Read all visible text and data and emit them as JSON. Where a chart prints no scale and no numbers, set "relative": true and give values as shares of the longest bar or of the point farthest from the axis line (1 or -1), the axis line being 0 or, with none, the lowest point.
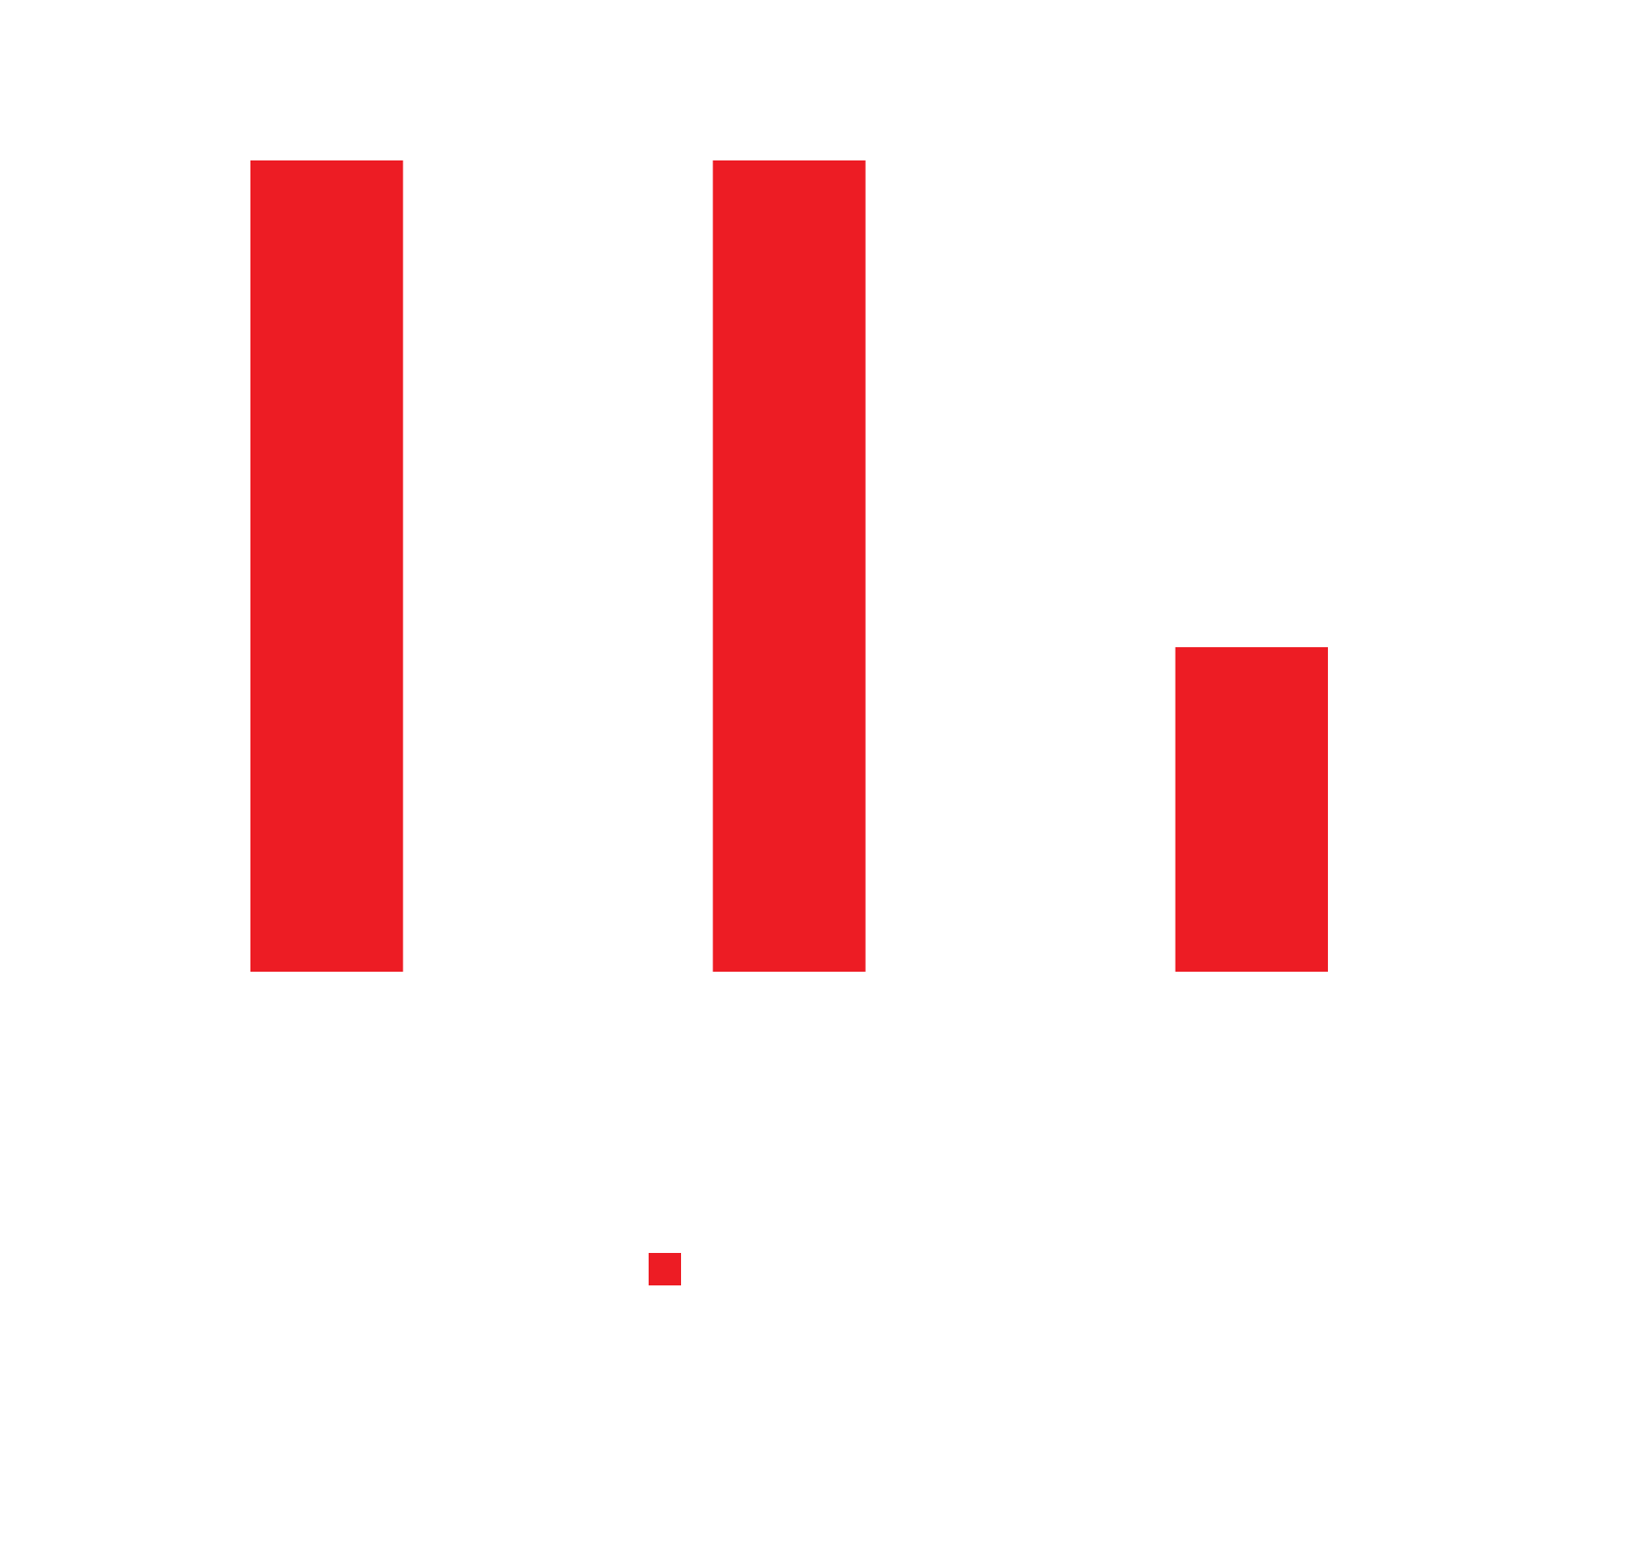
{
  "chart_data": {
    "type": "bar",
    "relative": true,
    "categories": [
      null,
      null,
      null
    ],
    "series": [
      {
        "color": "#ed1c24",
        "values": [
          1,
          1,
          0.4
        ]
      }
    ],
    "grid": false,
    "tick_labels": false
  }
}
